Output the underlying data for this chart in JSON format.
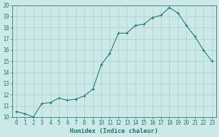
{
  "x": [
    0,
    1,
    2,
    3,
    4,
    5,
    6,
    7,
    8,
    9,
    10,
    11,
    12,
    13,
    14,
    15,
    16,
    17,
    18,
    19,
    20,
    21,
    22,
    23
  ],
  "y": [
    10.5,
    10.3,
    10.0,
    11.2,
    11.3,
    11.7,
    11.5,
    11.6,
    11.9,
    12.5,
    14.7,
    15.7,
    17.5,
    17.5,
    18.2,
    18.3,
    18.9,
    19.1,
    19.8,
    19.3,
    18.2,
    17.2,
    16.0,
    15.0
  ],
  "line_color": "#1a7a6e",
  "marker": "+",
  "marker_size": 3,
  "marker_lw": 0.8,
  "line_width": 0.8,
  "bg_color": "#cde8e8",
  "grid_color": "#a8cccc",
  "xlabel": "Humidex (Indice chaleur)",
  "ylabel": "",
  "title": "",
  "xlim": [
    -0.5,
    23.5
  ],
  "ylim": [
    10,
    20
  ],
  "yticks": [
    10,
    11,
    12,
    13,
    14,
    15,
    16,
    17,
    18,
    19,
    20
  ],
  "xticks": [
    0,
    1,
    2,
    3,
    4,
    5,
    6,
    7,
    8,
    9,
    10,
    11,
    12,
    13,
    14,
    15,
    16,
    17,
    18,
    19,
    20,
    21,
    22,
    23
  ],
  "tick_fontsize": 5.5,
  "label_fontsize": 6.5
}
